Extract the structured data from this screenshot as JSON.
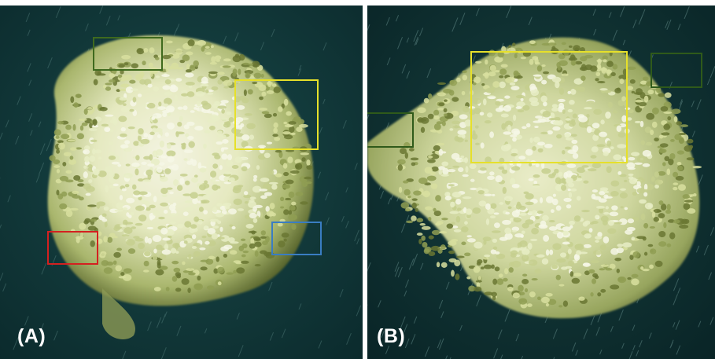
{
  "figure": {
    "panels": [
      {
        "label": "(A)",
        "highlight_boxes": [
          {
            "name": "dark-green-box",
            "color": "#3f6a1e"
          },
          {
            "name": "yellow-box",
            "color": "#e6e02a"
          },
          {
            "name": "red-box",
            "color": "#d42020"
          },
          {
            "name": "blue-box",
            "color": "#3a7dc2"
          }
        ]
      },
      {
        "label": "(B)",
        "highlight_boxes": [
          {
            "name": "yellow-box",
            "color": "#e6e02a"
          },
          {
            "name": "dark-green-box-top-right",
            "color": "#2f5a1a"
          },
          {
            "name": "dark-green-box-left",
            "color": "#2f5a1a"
          }
        ]
      }
    ],
    "colors": {
      "water": "#0f3436",
      "coral_light": "#f2f3dc",
      "coral_mid": "#c9d39a",
      "coral_dark": "#6f7f3a"
    }
  }
}
